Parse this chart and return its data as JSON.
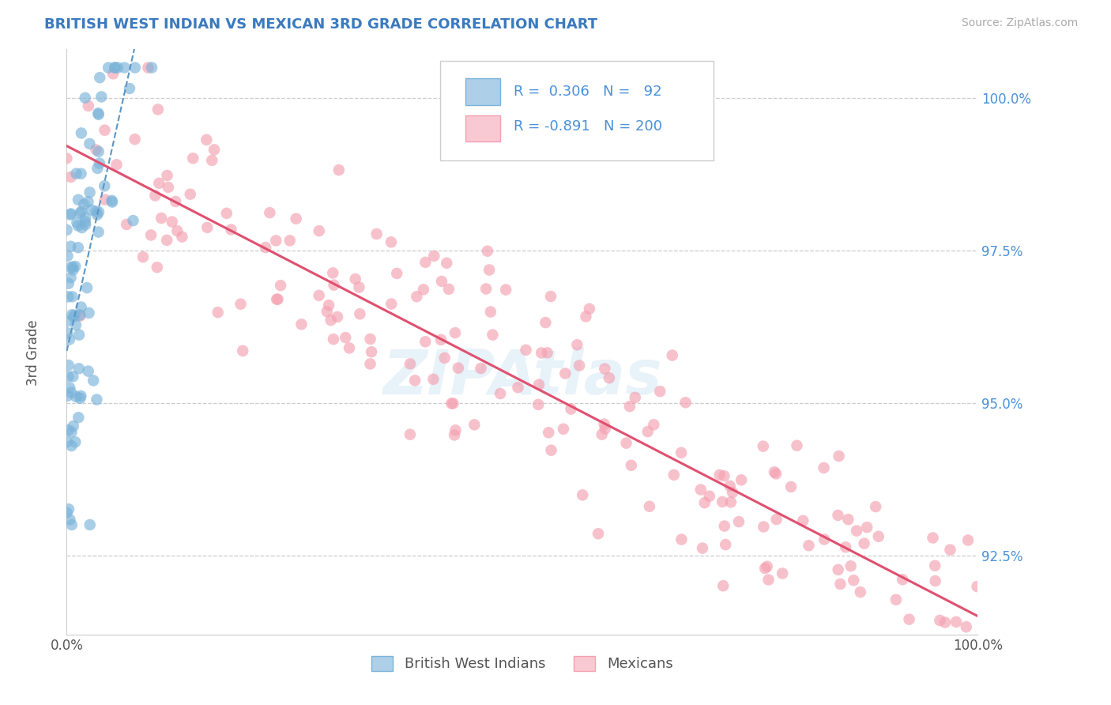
{
  "title": "BRITISH WEST INDIAN VS MEXICAN 3RD GRADE CORRELATION CHART",
  "title_color": "#3a7abf",
  "source_text": "Source: ZipAtlas.com",
  "ylabel": "3rd Grade",
  "x_min": 0.0,
  "x_max": 1.0,
  "y_min": 0.912,
  "y_max": 1.008,
  "x_tick_labels": [
    "0.0%",
    "100.0%"
  ],
  "y_tick_labels": [
    "92.5%",
    "95.0%",
    "97.5%",
    "100.0%"
  ],
  "y_tick_values": [
    0.925,
    0.95,
    0.975,
    1.0
  ],
  "blue_dot_color": "#7ab3d9",
  "blue_dot_edge": "#5a96c5",
  "pink_dot_color": "#f4a0b0",
  "pink_dot_edge": "#e87090",
  "trend_blue_color": "#5a96c5",
  "trend_pink_color": "#e05070",
  "R_blue": 0.306,
  "N_blue": 92,
  "R_pink": -0.891,
  "N_pink": 200,
  "watermark": "ZIPAtlas",
  "legend_label_blue": "British West Indians",
  "legend_label_pink": "Mexicans",
  "grid_color": "#cccccc",
  "background_color": "#ffffff",
  "ytick_color": "#4a90d9",
  "xtick_color": "#555555",
  "ylabel_color": "#555555"
}
